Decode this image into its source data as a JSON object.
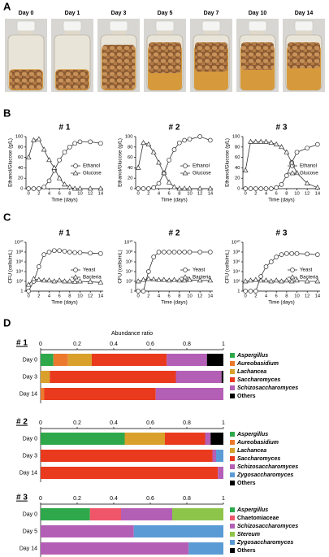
{
  "panel_labels": [
    "A",
    "B",
    "C",
    "D"
  ],
  "photos": {
    "labels": [
      "Day 0",
      "Day 1",
      "Day 3",
      "Day 5",
      "Day 7",
      "Day 10",
      "Day 14"
    ]
  },
  "chart_data": [
    {
      "type": "line",
      "title": "# 1",
      "xlabel": "Time (days)",
      "ylabel": "Ethanol/Glucose (g/L)",
      "x": [
        0,
        1,
        2,
        3,
        4,
        5,
        6,
        7,
        8,
        9,
        10,
        12,
        14
      ],
      "xlim": [
        -0.5,
        14.5
      ],
      "xticks": [
        0,
        2,
        4,
        6,
        8,
        10,
        12,
        14
      ],
      "ylim": [
        0,
        100
      ],
      "yticks": [
        0,
        20,
        40,
        60,
        80,
        100
      ],
      "legend": "center right",
      "series": [
        {
          "name": "Ethanol",
          "color": "#333333",
          "marker": "circle",
          "values": [
            0,
            0,
            0,
            3,
            15,
            35,
            55,
            70,
            80,
            87,
            90,
            90,
            87
          ]
        },
        {
          "name": "Glucose",
          "color": "#333333",
          "marker": "triangle",
          "values": [
            60,
            93,
            95,
            75,
            55,
            40,
            20,
            8,
            3,
            0,
            0,
            0,
            0
          ]
        }
      ]
    },
    {
      "type": "line",
      "title": "# 2",
      "xlabel": "Time (days)",
      "ylabel": "Ethanol/Glucose (g/L)",
      "x": [
        0,
        1,
        2,
        3,
        4,
        5,
        6,
        7,
        8,
        9,
        10,
        12,
        14
      ],
      "xlim": [
        -0.5,
        14.5
      ],
      "xticks": [
        0,
        2,
        4,
        6,
        8,
        10,
        12,
        14
      ],
      "ylim": [
        0,
        100
      ],
      "yticks": [
        0,
        20,
        40,
        60,
        80,
        100
      ],
      "legend": "center right",
      "series": [
        {
          "name": "Ethanol",
          "color": "#333333",
          "marker": "circle",
          "values": [
            0,
            0,
            0,
            2,
            10,
            30,
            55,
            75,
            88,
            93,
            95,
            100,
            93
          ]
        },
        {
          "name": "Glucose",
          "color": "#333333",
          "marker": "triangle",
          "values": [
            40,
            88,
            85,
            70,
            50,
            30,
            12,
            3,
            0,
            0,
            0,
            0,
            0
          ]
        }
      ]
    },
    {
      "type": "line",
      "title": "# 3",
      "xlabel": "Time (days)",
      "ylabel": "Ethanol/Glucose (g/L)",
      "x": [
        0,
        1,
        2,
        3,
        4,
        5,
        6,
        7,
        8,
        9,
        10,
        12,
        14
      ],
      "xlim": [
        -0.5,
        14.5
      ],
      "xticks": [
        0,
        2,
        4,
        6,
        8,
        10,
        12,
        14
      ],
      "ylim": [
        0,
        100
      ],
      "yticks": [
        0,
        20,
        40,
        60,
        80,
        100
      ],
      "legend": "center right",
      "series": [
        {
          "name": "Ethanol",
          "color": "#333333",
          "marker": "circle",
          "values": [
            0,
            0,
            0,
            0,
            0,
            0,
            2,
            8,
            25,
            50,
            70,
            78,
            85
          ]
        },
        {
          "name": "Glucose",
          "color": "#333333",
          "marker": "triangle",
          "values": [
            35,
            90,
            90,
            90,
            90,
            88,
            85,
            80,
            70,
            50,
            30,
            10,
            2
          ]
        }
      ]
    },
    {
      "type": "line",
      "title": "# 1",
      "xlabel": "Time (days)",
      "ylabel": "CFU (cells/mL)",
      "yscale": "log",
      "x": [
        0,
        1,
        2,
        3,
        4,
        5,
        6,
        7,
        8,
        9,
        10,
        12,
        14
      ],
      "xlim": [
        -0.5,
        14.5
      ],
      "xticks": [
        0,
        2,
        4,
        6,
        8,
        10,
        12,
        14
      ],
      "ylim": [
        1,
        10000000000
      ],
      "yticks": [
        1,
        {
          "value": 100,
          "label": "10²"
        },
        {
          "value": 10000,
          "label": "10⁴"
        },
        {
          "value": 1000000,
          "label": "10⁶"
        },
        {
          "value": 100000000,
          "label": "10⁸"
        },
        {
          "value": 10000000000,
          "label": "10¹⁰"
        }
      ],
      "legend": "center right",
      "series": [
        {
          "name": "Yeast",
          "color": "#333333",
          "marker": "circle",
          "values": [
            1,
            100,
            100000,
            30000000,
            100000000,
            200000000,
            200000000,
            150000000,
            100000000,
            80000000,
            80000000,
            60000000,
            50000000
          ]
        },
        {
          "name": "Bacteria",
          "color": "#333333",
          "marker": "triangle",
          "values": [
            20,
            300,
            200,
            150,
            150,
            100,
            150,
            100,
            100,
            80,
            100,
            80,
            60
          ]
        }
      ]
    },
    {
      "type": "line",
      "title": "# 2",
      "xlabel": "Time (days)",
      "ylabel": "CFU (cells/mL)",
      "yscale": "log",
      "x": [
        0,
        1,
        2,
        3,
        4,
        5,
        6,
        7,
        8,
        9,
        10,
        12,
        14
      ],
      "xlim": [
        -0.5,
        14.5
      ],
      "xticks": [
        0,
        2,
        4,
        6,
        8,
        10,
        12,
        14
      ],
      "ylim": [
        1,
        10000000000
      ],
      "yticks": [
        1,
        {
          "value": 100,
          "label": "10²"
        },
        {
          "value": 10000,
          "label": "10⁴"
        },
        {
          "value": 1000000,
          "label": "10⁶"
        },
        {
          "value": 100000000,
          "label": "10⁸"
        },
        {
          "value": 10000000000,
          "label": "10¹⁰"
        }
      ],
      "legend": "center right",
      "series": [
        {
          "name": "Yeast",
          "color": "#333333",
          "marker": "circle",
          "values": [
            1,
            1,
            10000,
            10000000,
            100000000,
            100000000,
            100000000,
            100000000,
            100000000,
            100000000,
            100000000,
            100000000,
            100000000
          ]
        },
        {
          "name": "Bacteria",
          "color": "#333333",
          "marker": "triangle",
          "values": [
            100,
            200,
            300,
            250,
            200,
            200,
            150,
            200,
            150,
            150,
            200,
            150,
            150
          ]
        }
      ]
    },
    {
      "type": "line",
      "title": "# 3",
      "xlabel": "Time (days)",
      "ylabel": "CFU (cells/mL)",
      "yscale": "log",
      "x": [
        0,
        1,
        2,
        3,
        4,
        5,
        6,
        7,
        8,
        9,
        10,
        12,
        14
      ],
      "xlim": [
        -0.5,
        14.5
      ],
      "xticks": [
        0,
        2,
        4,
        6,
        8,
        10,
        12,
        14
      ],
      "ylim": [
        1,
        10000000000
      ],
      "yticks": [
        1,
        {
          "value": 100,
          "label": "10²"
        },
        {
          "value": 10000,
          "label": "10⁴"
        },
        {
          "value": 1000000,
          "label": "10⁶"
        },
        {
          "value": 100000000,
          "label": "10⁸"
        },
        {
          "value": 10000000000,
          "label": "10¹⁰"
        }
      ],
      "legend": "center right",
      "series": [
        {
          "name": "Yeast",
          "color": "#333333",
          "marker": "circle",
          "values": [
            1,
            1,
            1,
            1000,
            100000,
            1000000,
            10000000,
            30000000,
            50000000,
            50000000,
            50000000,
            40000000,
            30000000
          ]
        },
        {
          "name": "Bacteria",
          "color": "#333333",
          "marker": "triangle",
          "values": [
            100,
            150,
            200,
            150,
            150,
            100,
            150,
            100,
            150,
            100,
            150,
            100,
            100
          ]
        }
      ]
    },
    {
      "type": "bar",
      "orientation": "horizontal",
      "stacked": true,
      "title": "# 1",
      "xlabel": "Abundance ratio",
      "categories": [
        "Day 0",
        "Day 3",
        "Day 14"
      ],
      "xlim": [
        0,
        1
      ],
      "xticks": [
        0,
        0.2,
        0.4,
        0.6,
        0.8,
        1
      ],
      "series": [
        {
          "name": "Aspergillus",
          "italic": true,
          "color": "#2ea84a",
          "values": [
            0.07,
            0,
            0
          ]
        },
        {
          "name": "Aureobasidium",
          "italic": true,
          "color": "#ec7a2e",
          "values": [
            0.08,
            0,
            0.02
          ]
        },
        {
          "name": "Lachancea",
          "italic": true,
          "color": "#d9a12c",
          "values": [
            0.13,
            0.05,
            0
          ]
        },
        {
          "name": "Saccharomyces",
          "italic": true,
          "color": "#ea3a1e",
          "values": [
            0.41,
            0.69,
            0.61
          ]
        },
        {
          "name": "Schizosaccharomyces",
          "italic": true,
          "color": "#b45fb6",
          "values": [
            0.22,
            0.25,
            0.37
          ]
        },
        {
          "name": "Others",
          "color": "#000000",
          "values": [
            0.09,
            0.01,
            0
          ]
        }
      ]
    },
    {
      "type": "bar",
      "orientation": "horizontal",
      "stacked": true,
      "title": "# 2",
      "categories": [
        "Day 0",
        "Day 3",
        "Day 14"
      ],
      "xlim": [
        0,
        1
      ],
      "xticks": [
        0,
        0.2,
        0.4,
        0.6,
        0.8,
        1
      ],
      "series": [
        {
          "name": "Aspergillus",
          "italic": true,
          "color": "#2ea84a",
          "values": [
            0.46,
            0,
            0
          ]
        },
        {
          "name": "Aureobasidium",
          "italic": true,
          "color": "#ec7a2e",
          "values": [
            0,
            0,
            0
          ]
        },
        {
          "name": "Lachancea",
          "italic": true,
          "color": "#d9a12c",
          "values": [
            0.22,
            0,
            0
          ]
        },
        {
          "name": "Saccharomyces",
          "italic": true,
          "color": "#ea3a1e",
          "values": [
            0.22,
            0.94,
            0.97
          ]
        },
        {
          "name": "Schizosaccharomyces",
          "italic": true,
          "color": "#b45fb6",
          "values": [
            0.03,
            0.02,
            0.03
          ]
        },
        {
          "name": "Zygosaccharomyces",
          "italic": true,
          "color": "#5b9bd5",
          "values": [
            0,
            0.04,
            0
          ]
        },
        {
          "name": "Others",
          "color": "#000000",
          "values": [
            0.07,
            0,
            0
          ]
        }
      ]
    },
    {
      "type": "bar",
      "orientation": "horizontal",
      "stacked": true,
      "title": "# 3",
      "categories": [
        "Day 0",
        "Day 5",
        "Day 14"
      ],
      "xlim": [
        0,
        1
      ],
      "xticks": [
        0,
        0.2,
        0.4,
        0.6,
        0.8,
        1
      ],
      "series": [
        {
          "name": "Aspergillus",
          "italic": true,
          "color": "#2ea84a",
          "values": [
            0.27,
            0,
            0
          ]
        },
        {
          "name": "Chaetomiaceae",
          "color": "#f0566a",
          "values": [
            0.17,
            0,
            0
          ]
        },
        {
          "name": "Schizosaccharomyces",
          "italic": true,
          "color": "#b45fb6",
          "values": [
            0.28,
            0.51,
            0.81
          ]
        },
        {
          "name": "Stereum",
          "italic": true,
          "color": "#8cc54a",
          "values": [
            0.28,
            0,
            0
          ]
        },
        {
          "name": "Zygosaccharomyces",
          "italic": true,
          "color": "#5b9bd5",
          "values": [
            0,
            0.49,
            0.19
          ]
        },
        {
          "name": "Others",
          "color": "#000000",
          "values": [
            0,
            0,
            0
          ]
        }
      ]
    }
  ]
}
